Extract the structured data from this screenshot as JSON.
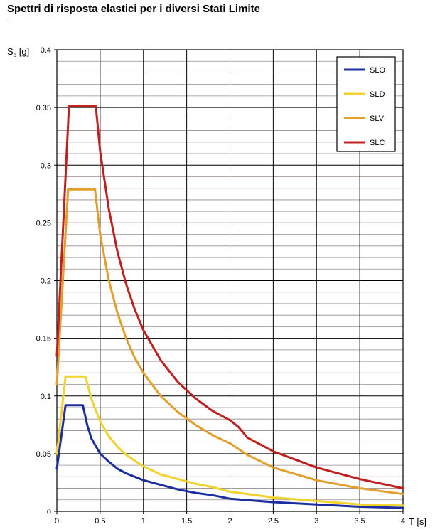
{
  "title": "Spettri di risposta elastici per i diversi Stati Limite",
  "chart_data": {
    "type": "line",
    "title": "Spettri di risposta elastici per i diversi Stati Limite",
    "xlabel": "T [s]",
    "ylabel_main": "S",
    "ylabel_sub": "e",
    "ylabel_unit": "[g]",
    "xlim": [
      0,
      4
    ],
    "ylim": [
      0,
      0.4
    ],
    "x_ticks": [
      0,
      0.5,
      1,
      1.5,
      2,
      2.5,
      3,
      3.5,
      4
    ],
    "x_tick_labels": [
      "0",
      "0.5",
      "1",
      "1.5",
      "2",
      "2.5",
      "3",
      "3.5",
      "4"
    ],
    "y_ticks": [
      0,
      0.05,
      0.1,
      0.15,
      0.2,
      0.25,
      0.3,
      0.35,
      0.4
    ],
    "y_tick_labels": [
      "0",
      "0.05",
      "0.1",
      "0.15",
      "0.2",
      "0.25",
      "0.3",
      "0.35",
      "0.4"
    ],
    "y_minor_step": 0.01,
    "grid": true,
    "legend_position": "top-right",
    "series": [
      {
        "name": "SLO",
        "color": "#1c2ea0",
        "points": [
          [
            0,
            0.037
          ],
          [
            0.1,
            0.092
          ],
          [
            0.3,
            0.092
          ],
          [
            0.35,
            0.075
          ],
          [
            0.4,
            0.063
          ],
          [
            0.5,
            0.05
          ],
          [
            0.6,
            0.043
          ],
          [
            0.7,
            0.037
          ],
          [
            0.8,
            0.033
          ],
          [
            1.0,
            0.027
          ],
          [
            1.2,
            0.023
          ],
          [
            1.4,
            0.019
          ],
          [
            1.6,
            0.016
          ],
          [
            1.8,
            0.014
          ],
          [
            2.0,
            0.011
          ],
          [
            2.5,
            0.008
          ],
          [
            3.0,
            0.006
          ],
          [
            3.5,
            0.004
          ],
          [
            4.0,
            0.003
          ]
        ]
      },
      {
        "name": "SLD",
        "color": "#f2d22e",
        "points": [
          [
            0,
            0.05
          ],
          [
            0.1,
            0.117
          ],
          [
            0.33,
            0.117
          ],
          [
            0.4,
            0.097
          ],
          [
            0.5,
            0.078
          ],
          [
            0.6,
            0.065
          ],
          [
            0.7,
            0.056
          ],
          [
            0.8,
            0.049
          ],
          [
            1.0,
            0.039
          ],
          [
            1.2,
            0.032
          ],
          [
            1.4,
            0.028
          ],
          [
            1.6,
            0.024
          ],
          [
            1.8,
            0.021
          ],
          [
            2.0,
            0.017
          ],
          [
            2.5,
            0.012
          ],
          [
            3.0,
            0.009
          ],
          [
            3.5,
            0.006
          ],
          [
            4.0,
            0.005
          ]
        ]
      },
      {
        "name": "SLV",
        "color": "#e39e2b",
        "points": [
          [
            0,
            0.11
          ],
          [
            0.13,
            0.279
          ],
          [
            0.44,
            0.279
          ],
          [
            0.5,
            0.24
          ],
          [
            0.6,
            0.2
          ],
          [
            0.7,
            0.172
          ],
          [
            0.8,
            0.15
          ],
          [
            0.9,
            0.133
          ],
          [
            1.0,
            0.12
          ],
          [
            1.2,
            0.1
          ],
          [
            1.4,
            0.086
          ],
          [
            1.6,
            0.075
          ],
          [
            1.8,
            0.066
          ],
          [
            2.0,
            0.059
          ],
          [
            2.2,
            0.049
          ],
          [
            2.5,
            0.038
          ],
          [
            3.0,
            0.027
          ],
          [
            3.5,
            0.02
          ],
          [
            4.0,
            0.015
          ]
        ]
      },
      {
        "name": "SLC",
        "color": "#c0201e",
        "points": [
          [
            0,
            0.135
          ],
          [
            0.14,
            0.351
          ],
          [
            0.45,
            0.351
          ],
          [
            0.5,
            0.312
          ],
          [
            0.6,
            0.262
          ],
          [
            0.7,
            0.225
          ],
          [
            0.8,
            0.197
          ],
          [
            0.9,
            0.175
          ],
          [
            1.0,
            0.157
          ],
          [
            1.2,
            0.131
          ],
          [
            1.4,
            0.112
          ],
          [
            1.6,
            0.098
          ],
          [
            1.8,
            0.087
          ],
          [
            2.0,
            0.079
          ],
          [
            2.1,
            0.073
          ],
          [
            2.2,
            0.064
          ],
          [
            2.5,
            0.052
          ],
          [
            3.0,
            0.038
          ],
          [
            3.5,
            0.028
          ],
          [
            4.0,
            0.02
          ]
        ]
      }
    ]
  }
}
